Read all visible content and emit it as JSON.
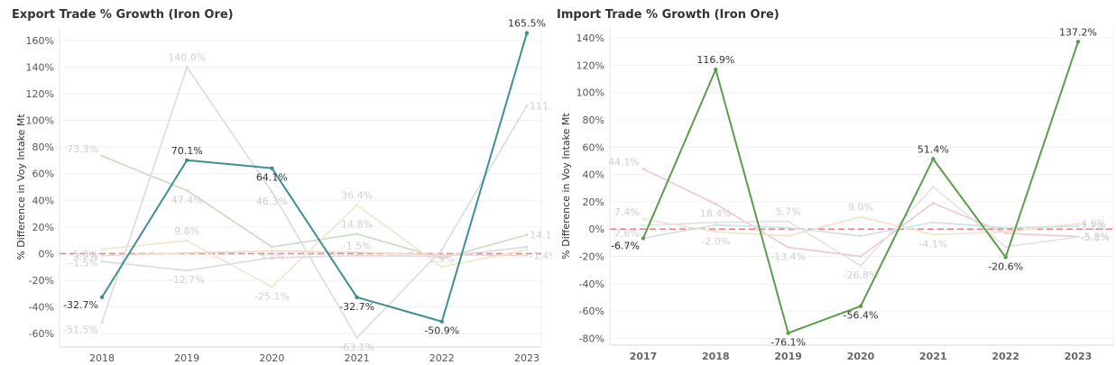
{
  "chart_data": [
    {
      "type": "line",
      "title": "Export Trade % Growth (Iron Ore)",
      "xlabel": "",
      "ylabel": "% Difference in Voy Intake Mt",
      "x": [
        "2018",
        "2019",
        "2020",
        "2021",
        "2022",
        "2023"
      ],
      "ylim": [
        -70,
        170
      ],
      "yticks": [
        "-60%",
        "-40%",
        "-20%",
        "0%",
        "20%",
        "40%",
        "60%",
        "80%",
        "100%",
        "120%",
        "140%",
        "160%"
      ],
      "ytick_values": [
        -60,
        -40,
        -20,
        0,
        20,
        40,
        60,
        80,
        100,
        120,
        140,
        160
      ],
      "grid": true,
      "reference_line": 0,
      "highlight_color": "#3f8f8f",
      "series": [
        {
          "values": [
            -32.7,
            70.1,
            64.1,
            -32.7,
            -50.9,
            165.5
          ],
          "color": "#3f8f8f",
          "highlight": true,
          "labels": [
            "-32.7%",
            "70.1%",
            "64.1%",
            "-32.7%",
            "-50.9%",
            "165.5%"
          ]
        },
        {
          "values": [
            -51.5,
            140.0,
            46.3,
            -63.1,
            2.9,
            111.0
          ],
          "color": "#dcdcdc",
          "labels": [
            "-51.5%",
            "140.0%",
            "46.3%",
            "-63.1%",
            "2.9%",
            "111.0%"
          ]
        },
        {
          "values": [
            73.3,
            47.4,
            5.1,
            14.8,
            -3.5,
            14.1
          ],
          "color": "#c8dcc0",
          "labels": [
            "73.3%",
            "47.4%",
            "5.1%",
            "14.8%",
            "",
            "14.1%"
          ]
        },
        {
          "values": [
            3.2,
            9.8,
            -25.1,
            36.4,
            -10.0,
            3.0
          ],
          "color": "#f3e6c8",
          "labels": [
            "3.2%",
            "9.8%",
            "-25.1%",
            "36.4%",
            "",
            ""
          ]
        },
        {
          "values": [
            -5.8,
            -12.7,
            -3.0,
            -1.5,
            -2.0,
            5.0
          ],
          "color": "#ded6ea",
          "labels": [
            "-5.8%",
            "-12.7%",
            "",
            "-1.5%",
            "",
            ""
          ]
        },
        {
          "values": [
            -1.5,
            0.5,
            2.0,
            1.0,
            -1.0,
            -1.4
          ],
          "color": "#f6d6c6",
          "labels": [
            "-1.5%",
            "",
            "",
            "",
            "",
            "-1.4%"
          ]
        }
      ]
    },
    {
      "type": "line",
      "title": "Import Trade % Growth (Iron Ore)",
      "xlabel": "",
      "ylabel": "% Difference in Voy Intake Mt",
      "x": [
        "2017",
        "2018",
        "2019",
        "2020",
        "2021",
        "2022",
        "2023"
      ],
      "ylim": [
        -85,
        148
      ],
      "yticks": [
        "-80%",
        "-60%",
        "-40%",
        "-20%",
        "0%",
        "20%",
        "40%",
        "60%",
        "80%",
        "100%",
        "120%",
        "140%"
      ],
      "ytick_values": [
        -80,
        -60,
        -40,
        -20,
        0,
        20,
        40,
        60,
        80,
        100,
        120,
        140
      ],
      "grid": true,
      "reference_line": 0,
      "highlight_color": "#5a9e4b",
      "series": [
        {
          "values": [
            -6.7,
            116.9,
            -76.1,
            -56.4,
            51.4,
            -20.6,
            137.2
          ],
          "color": "#5a9e4b",
          "highlight": true,
          "labels": [
            "-6.7%",
            "116.9%",
            "-76.1%",
            "-56.4%",
            "51.4%",
            "-20.6%",
            "137.2%"
          ]
        },
        {
          "values": [
            44.1,
            18.4,
            -13.4,
            -20.0,
            19.0,
            -3.0,
            -5.5
          ],
          "color": "#f0c6cc",
          "labels": [
            "44.1%",
            "18.4%",
            "-13.4%",
            "",
            "",
            "",
            "-5.5%"
          ]
        },
        {
          "values": [
            2.6,
            5.0,
            5.7,
            -26.8,
            31.0,
            -13.0,
            -5.8
          ],
          "color": "#e2e2e2",
          "labels": [
            "2.6%",
            "",
            "5.7%",
            "-26.8%",
            "",
            "",
            "-5.8%"
          ]
        },
        {
          "values": [
            7.4,
            -2.0,
            -5.0,
            9.0,
            -4.1,
            -2.0,
            4.0
          ],
          "color": "#f3e2c8",
          "labels": [
            "7.4%",
            "-2.0%",
            "",
            "9.0%",
            "-4.1%",
            "",
            "4.0%"
          ]
        },
        {
          "values": [
            -6.6,
            3.0,
            1.0,
            -5.0,
            5.0,
            1.0,
            2.1
          ],
          "color": "#cfe0ea",
          "labels": [
            "-6.6%",
            "",
            "",
            "",
            "",
            "",
            "2.1%"
          ]
        }
      ]
    }
  ]
}
